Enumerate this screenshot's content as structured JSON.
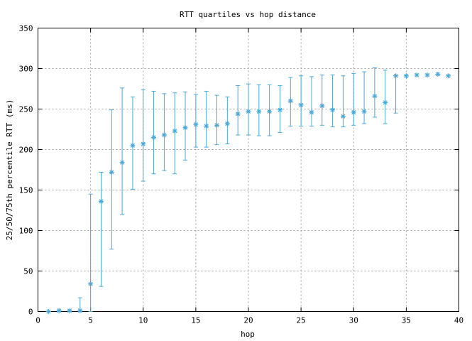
{
  "chart_data": {
    "type": "scatter",
    "title": "RTT quartiles vs hop distance",
    "xlabel": "hop",
    "ylabel": "25/50/75th percentile RTT (ms)",
    "xlim": [
      0,
      40
    ],
    "ylim": [
      0,
      350
    ],
    "xticks": [
      0,
      5,
      10,
      15,
      20,
      25,
      30,
      35,
      40
    ],
    "yticks": [
      0,
      50,
      100,
      150,
      200,
      250,
      300,
      350
    ],
    "grid": true,
    "color": "#4aa8d8",
    "series": [
      {
        "marker": "asterisk",
        "error_bars": "q25-q75",
        "points": [
          {
            "hop": 1,
            "q25": 0,
            "median": 0,
            "q75": 0
          },
          {
            "hop": 2,
            "q25": 0,
            "median": 1,
            "q75": 1
          },
          {
            "hop": 3,
            "q25": 0,
            "median": 1,
            "q75": 1
          },
          {
            "hop": 4,
            "q25": 0,
            "median": 1,
            "q75": 17
          },
          {
            "hop": 5,
            "q25": 0,
            "median": 34,
            "q75": 145
          },
          {
            "hop": 6,
            "q25": 31,
            "median": 136,
            "q75": 172
          },
          {
            "hop": 7,
            "q25": 77,
            "median": 172,
            "q75": 249
          },
          {
            "hop": 8,
            "q25": 120,
            "median": 184,
            "q75": 276
          },
          {
            "hop": 9,
            "q25": 151,
            "median": 205,
            "q75": 265
          },
          {
            "hop": 10,
            "q25": 161,
            "median": 207,
            "q75": 274
          },
          {
            "hop": 11,
            "q25": 170,
            "median": 215,
            "q75": 272
          },
          {
            "hop": 12,
            "q25": 174,
            "median": 218,
            "q75": 269
          },
          {
            "hop": 13,
            "q25": 170,
            "median": 223,
            "q75": 270
          },
          {
            "hop": 14,
            "q25": 187,
            "median": 227,
            "q75": 271
          },
          {
            "hop": 15,
            "q25": 203,
            "median": 231,
            "q75": 268
          },
          {
            "hop": 16,
            "q25": 203,
            "median": 229,
            "q75": 272
          },
          {
            "hop": 17,
            "q25": 206,
            "median": 230,
            "q75": 267
          },
          {
            "hop": 18,
            "q25": 207,
            "median": 232,
            "q75": 265
          },
          {
            "hop": 19,
            "q25": 218,
            "median": 244,
            "q75": 279
          },
          {
            "hop": 20,
            "q25": 218,
            "median": 247,
            "q75": 281
          },
          {
            "hop": 21,
            "q25": 217,
            "median": 247,
            "q75": 280
          },
          {
            "hop": 22,
            "q25": 217,
            "median": 247,
            "q75": 280
          },
          {
            "hop": 23,
            "q25": 221,
            "median": 249,
            "q75": 279
          },
          {
            "hop": 24,
            "q25": 229,
            "median": 260,
            "q75": 289
          },
          {
            "hop": 25,
            "q25": 229,
            "median": 255,
            "q75": 291
          },
          {
            "hop": 26,
            "q25": 229,
            "median": 246,
            "q75": 290
          },
          {
            "hop": 27,
            "q25": 230,
            "median": 254,
            "q75": 292
          },
          {
            "hop": 28,
            "q25": 228,
            "median": 249,
            "q75": 292
          },
          {
            "hop": 29,
            "q25": 228,
            "median": 241,
            "q75": 291
          },
          {
            "hop": 30,
            "q25": 230,
            "median": 246,
            "q75": 294
          },
          {
            "hop": 31,
            "q25": 232,
            "median": 247,
            "q75": 296
          },
          {
            "hop": 32,
            "q25": 240,
            "median": 266,
            "q75": 301
          },
          {
            "hop": 33,
            "q25": 232,
            "median": 258,
            "q75": 298
          },
          {
            "hop": 34,
            "q25": 245,
            "median": 291,
            "q75": 291
          },
          {
            "hop": 35,
            "q25": 291,
            "median": 291,
            "q75": 291
          },
          {
            "hop": 36,
            "q25": 292,
            "median": 292,
            "q75": 292
          },
          {
            "hop": 37,
            "q25": 292,
            "median": 292,
            "q75": 292
          },
          {
            "hop": 38,
            "q25": 293,
            "median": 293,
            "q75": 293
          },
          {
            "hop": 39,
            "q25": 291,
            "median": 291,
            "q75": 291
          }
        ]
      }
    ]
  }
}
